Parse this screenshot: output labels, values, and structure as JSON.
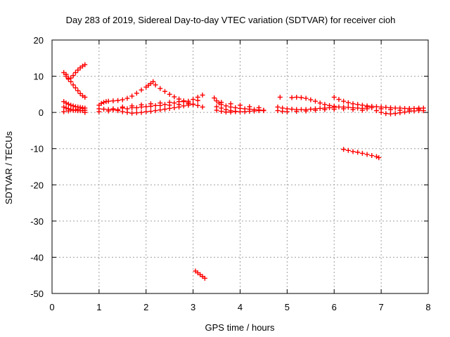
{
  "chart_data": {
    "type": "scatter",
    "title": "Day 283 of 2019, Sidereal Day-to-day VTEC variation (SDTVAR) for receiver cioh",
    "xlabel": "GPS time / hours",
    "ylabel": "SDTVAR / TECUs",
    "xlim": [
      0,
      8
    ],
    "ylim": [
      -50,
      20
    ],
    "xticks": [
      0,
      1,
      2,
      3,
      4,
      5,
      6,
      7,
      8
    ],
    "yticks": [
      -50,
      -40,
      -30,
      -20,
      -10,
      0,
      10,
      20
    ],
    "grid": true,
    "marker": "+",
    "color": "#ff0000",
    "series": [
      {
        "points": [
          [
            0.25,
            11.0
          ],
          [
            0.3,
            10.0
          ],
          [
            0.35,
            9.2
          ],
          [
            0.4,
            9.5
          ],
          [
            0.45,
            10.2
          ],
          [
            0.5,
            11.0
          ],
          [
            0.55,
            11.7
          ],
          [
            0.6,
            12.3
          ],
          [
            0.65,
            12.8
          ],
          [
            0.7,
            13.2
          ],
          [
            0.3,
            10.5
          ],
          [
            0.35,
            9.5
          ],
          [
            0.4,
            8.5
          ],
          [
            0.45,
            7.6
          ],
          [
            0.5,
            6.8
          ],
          [
            0.55,
            6.0
          ],
          [
            0.6,
            5.2
          ],
          [
            0.65,
            4.6
          ],
          [
            0.7,
            4.2
          ],
          [
            0.25,
            3.0
          ],
          [
            0.3,
            2.6
          ],
          [
            0.35,
            2.3
          ],
          [
            0.4,
            2.0
          ],
          [
            0.45,
            1.8
          ],
          [
            0.5,
            1.6
          ],
          [
            0.55,
            1.5
          ],
          [
            0.6,
            1.4
          ],
          [
            0.65,
            1.3
          ],
          [
            0.7,
            1.2
          ],
          [
            0.25,
            1.5
          ],
          [
            0.3,
            1.2
          ],
          [
            0.35,
            1.0
          ],
          [
            0.4,
            0.8
          ],
          [
            0.45,
            0.7
          ],
          [
            0.5,
            0.6
          ],
          [
            0.55,
            0.5
          ],
          [
            0.6,
            0.5
          ],
          [
            0.65,
            0.5
          ],
          [
            0.7,
            0.6
          ],
          [
            0.25,
            0.2
          ],
          [
            0.35,
            0.4
          ],
          [
            0.45,
            0.6
          ],
          [
            0.55,
            0.9
          ],
          [
            0.65,
            1.1
          ],
          [
            0.7,
            0.0
          ],
          [
            1.0,
            2.0
          ],
          [
            1.05,
            2.5
          ],
          [
            1.1,
            2.8
          ],
          [
            1.15,
            3.0
          ],
          [
            1.2,
            3.1
          ],
          [
            1.3,
            3.2
          ],
          [
            1.4,
            3.3
          ],
          [
            1.5,
            3.5
          ],
          [
            1.6,
            3.9
          ],
          [
            1.7,
            4.5
          ],
          [
            1.8,
            5.3
          ],
          [
            1.9,
            6.2
          ],
          [
            2.0,
            7.0
          ],
          [
            2.05,
            7.5
          ],
          [
            2.1,
            8.0
          ],
          [
            2.15,
            8.5
          ],
          [
            2.2,
            7.6
          ],
          [
            2.3,
            6.6
          ],
          [
            2.4,
            5.8
          ],
          [
            2.5,
            5.0
          ],
          [
            2.6,
            4.3
          ],
          [
            2.7,
            3.7
          ],
          [
            2.8,
            3.2
          ],
          [
            2.9,
            2.7
          ],
          [
            3.0,
            2.3
          ],
          [
            3.1,
            1.9
          ],
          [
            3.2,
            1.5
          ],
          [
            1.0,
            1.0
          ],
          [
            1.1,
            0.9
          ],
          [
            1.2,
            0.8
          ],
          [
            1.3,
            0.7
          ],
          [
            1.4,
            0.5
          ],
          [
            1.5,
            0.2
          ],
          [
            1.6,
            0.0
          ],
          [
            1.7,
            -0.2
          ],
          [
            1.8,
            -0.1
          ],
          [
            1.9,
            0.0
          ],
          [
            2.0,
            0.2
          ],
          [
            2.1,
            0.3
          ],
          [
            2.2,
            0.5
          ],
          [
            2.3,
            0.7
          ],
          [
            2.4,
            0.9
          ],
          [
            2.5,
            1.1
          ],
          [
            2.6,
            1.3
          ],
          [
            2.7,
            1.5
          ],
          [
            2.8,
            1.8
          ],
          [
            2.9,
            2.0
          ],
          [
            3.0,
            2.2
          ],
          [
            1.0,
            0.2
          ],
          [
            1.2,
            0.4
          ],
          [
            1.4,
            0.8
          ],
          [
            1.6,
            1.0
          ],
          [
            1.8,
            1.3
          ],
          [
            2.0,
            1.6
          ],
          [
            2.2,
            1.9
          ],
          [
            2.4,
            2.2
          ],
          [
            2.6,
            2.6
          ],
          [
            2.8,
            3.0
          ],
          [
            3.0,
            3.6
          ],
          [
            3.1,
            4.2
          ],
          [
            3.2,
            4.8
          ],
          [
            1.5,
            1.5
          ],
          [
            1.7,
            1.8
          ],
          [
            1.9,
            2.1
          ],
          [
            2.1,
            2.4
          ],
          [
            2.3,
            2.6
          ],
          [
            2.5,
            2.8
          ],
          [
            2.7,
            3.0
          ],
          [
            2.9,
            3.1
          ],
          [
            3.1,
            3.3
          ],
          [
            1.3,
            1.0
          ],
          [
            1.5,
            1.2
          ],
          [
            1.7,
            1.3
          ],
          [
            1.9,
            1.5
          ],
          [
            2.1,
            1.7
          ],
          [
            2.3,
            1.9
          ],
          [
            2.5,
            2.0
          ],
          [
            2.7,
            2.2
          ],
          [
            2.9,
            2.4
          ],
          [
            3.05,
            -43.8
          ],
          [
            3.1,
            -44.3
          ],
          [
            3.15,
            -44.8
          ],
          [
            3.2,
            -45.3
          ],
          [
            3.25,
            -45.8
          ],
          [
            3.45,
            4.0
          ],
          [
            3.5,
            3.2
          ],
          [
            3.55,
            2.6
          ],
          [
            3.6,
            2.2
          ],
          [
            3.7,
            1.8
          ],
          [
            3.8,
            1.5
          ],
          [
            3.9,
            1.3
          ],
          [
            4.0,
            1.1
          ],
          [
            4.1,
            1.0
          ],
          [
            4.2,
            0.9
          ],
          [
            4.3,
            0.8
          ],
          [
            4.4,
            0.7
          ],
          [
            4.5,
            0.6
          ],
          [
            3.5,
            1.6
          ],
          [
            3.6,
            1.2
          ],
          [
            3.7,
            0.8
          ],
          [
            3.8,
            0.5
          ],
          [
            3.9,
            0.3
          ],
          [
            4.0,
            0.2
          ],
          [
            4.1,
            0.2
          ],
          [
            4.2,
            0.3
          ],
          [
            4.3,
            0.4
          ],
          [
            4.4,
            0.5
          ],
          [
            4.5,
            0.5
          ],
          [
            3.5,
            0.6
          ],
          [
            3.6,
            0.3
          ],
          [
            3.7,
            0.1
          ],
          [
            3.8,
            0.1
          ],
          [
            3.9,
            0.2
          ],
          [
            3.6,
            2.8
          ],
          [
            3.8,
            2.4
          ],
          [
            4.0,
            2.0
          ],
          [
            4.2,
            1.6
          ],
          [
            4.4,
            1.3
          ],
          [
            4.85,
            4.2
          ],
          [
            4.8,
            1.5
          ],
          [
            4.9,
            1.2
          ],
          [
            5.0,
            1.0
          ],
          [
            5.1,
            0.9
          ],
          [
            5.2,
            0.8
          ],
          [
            5.3,
            0.8
          ],
          [
            5.4,
            0.8
          ],
          [
            5.5,
            0.9
          ],
          [
            5.6,
            1.0
          ],
          [
            5.7,
            1.1
          ],
          [
            5.8,
            1.2
          ],
          [
            5.9,
            1.3
          ],
          [
            6.0,
            1.4
          ],
          [
            6.1,
            1.5
          ],
          [
            6.2,
            1.5
          ],
          [
            6.3,
            1.4
          ],
          [
            6.4,
            1.3
          ],
          [
            6.5,
            1.2
          ],
          [
            6.6,
            1.1
          ],
          [
            6.7,
            1.0
          ],
          [
            4.8,
            0.5
          ],
          [
            4.9,
            0.3
          ],
          [
            5.0,
            0.2
          ],
          [
            5.2,
            0.3
          ],
          [
            5.4,
            0.4
          ],
          [
            5.6,
            0.6
          ],
          [
            5.8,
            0.8
          ],
          [
            6.0,
            0.9
          ],
          [
            6.2,
            1.0
          ],
          [
            6.4,
            0.8
          ],
          [
            6.6,
            0.6
          ],
          [
            5.1,
            4.1
          ],
          [
            5.2,
            4.2
          ],
          [
            5.3,
            4.1
          ],
          [
            5.4,
            3.9
          ],
          [
            5.5,
            3.5
          ],
          [
            5.6,
            3.1
          ],
          [
            5.7,
            2.6
          ],
          [
            5.8,
            2.2
          ],
          [
            5.9,
            1.9
          ],
          [
            6.0,
            1.7
          ],
          [
            6.0,
            4.2
          ],
          [
            6.1,
            3.6
          ],
          [
            6.2,
            3.1
          ],
          [
            6.3,
            2.7
          ],
          [
            6.4,
            2.4
          ],
          [
            6.5,
            2.2
          ],
          [
            6.6,
            2.0
          ],
          [
            6.7,
            1.8
          ],
          [
            6.8,
            1.7
          ],
          [
            6.9,
            1.6
          ],
          [
            7.0,
            1.5
          ],
          [
            7.1,
            1.4
          ],
          [
            7.2,
            1.3
          ],
          [
            7.3,
            1.2
          ],
          [
            7.4,
            1.2
          ],
          [
            7.5,
            1.1
          ],
          [
            7.6,
            1.1
          ],
          [
            7.7,
            1.1
          ],
          [
            7.8,
            1.2
          ],
          [
            7.9,
            1.2
          ],
          [
            6.9,
            0.5
          ],
          [
            7.0,
            0.0
          ],
          [
            7.1,
            -0.3
          ],
          [
            7.2,
            -0.4
          ],
          [
            7.3,
            -0.3
          ],
          [
            7.4,
            -0.1
          ],
          [
            7.5,
            0.1
          ],
          [
            7.6,
            0.3
          ],
          [
            7.7,
            0.4
          ],
          [
            7.8,
            0.5
          ],
          [
            7.9,
            0.5
          ],
          [
            7.0,
            1.0
          ],
          [
            7.2,
            0.8
          ],
          [
            7.4,
            0.6
          ],
          [
            7.6,
            0.7
          ],
          [
            7.8,
            0.9
          ],
          [
            6.7,
            1.5
          ],
          [
            6.8,
            1.3
          ],
          [
            6.2,
            -10.2
          ],
          [
            6.3,
            -10.5
          ],
          [
            6.4,
            -10.8
          ],
          [
            6.5,
            -11.0
          ],
          [
            6.6,
            -11.3
          ],
          [
            6.7,
            -11.6
          ],
          [
            6.8,
            -11.9
          ],
          [
            6.9,
            -12.2
          ],
          [
            6.95,
            -12.5
          ]
        ]
      }
    ]
  }
}
